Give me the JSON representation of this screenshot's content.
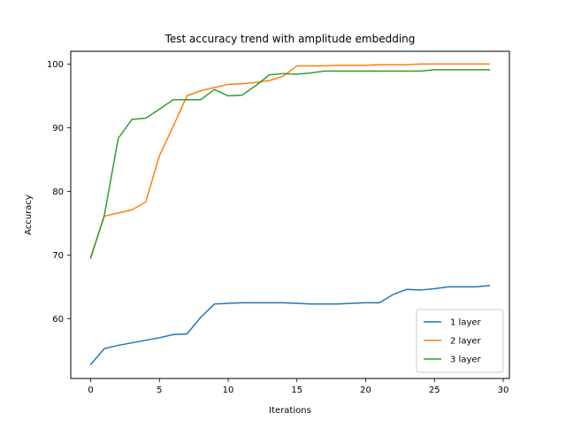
{
  "chart_data": {
    "type": "line",
    "title": "Test accuracy trend with amplitude embedding",
    "xlabel": "Iterations",
    "ylabel": "Accuracy",
    "xlim": [
      -1.45,
      30.45
    ],
    "ylim": [
      50.6,
      102.0
    ],
    "xticks": [
      0,
      5,
      10,
      15,
      20,
      25,
      30
    ],
    "yticks": [
      60,
      70,
      80,
      90,
      100
    ],
    "grid": false,
    "legend_position": "lower-right",
    "x": [
      0,
      1,
      2,
      3,
      4,
      5,
      6,
      7,
      8,
      9,
      10,
      11,
      12,
      13,
      14,
      15,
      16,
      17,
      18,
      19,
      20,
      21,
      22,
      23,
      24,
      25,
      26,
      27,
      28,
      29
    ],
    "series": [
      {
        "name": "1 layer",
        "color": "#1f77b4",
        "values": [
          52.8,
          55.3,
          55.8,
          56.2,
          56.6,
          57.0,
          57.5,
          57.6,
          60.2,
          62.3,
          62.4,
          62.5,
          62.5,
          62.5,
          62.5,
          62.4,
          62.3,
          62.3,
          62.3,
          62.4,
          62.5,
          62.5,
          63.8,
          64.6,
          64.5,
          64.7,
          65.0,
          65.0,
          65.0,
          65.2
        ]
      },
      {
        "name": "2 layer",
        "color": "#ff7f0e",
        "values": [
          69.7,
          76.1,
          76.6,
          77.1,
          78.3,
          85.6,
          90.2,
          95.0,
          95.8,
          96.3,
          96.8,
          96.9,
          97.1,
          97.4,
          98.1,
          99.7,
          99.7,
          99.7,
          99.8,
          99.8,
          99.8,
          99.9,
          99.9,
          99.9,
          100.0,
          100.0,
          100.0,
          100.0,
          100.0,
          100.0
        ]
      },
      {
        "name": "3 layer",
        "color": "#2ca02c",
        "values": [
          69.5,
          76.3,
          88.3,
          91.3,
          91.5,
          92.9,
          94.4,
          94.4,
          94.4,
          96.0,
          95.0,
          95.1,
          96.6,
          98.3,
          98.5,
          98.4,
          98.6,
          98.9,
          98.9,
          98.9,
          98.9,
          98.9,
          98.9,
          98.9,
          98.9,
          99.1,
          99.1,
          99.1,
          99.1,
          99.1
        ]
      }
    ]
  }
}
